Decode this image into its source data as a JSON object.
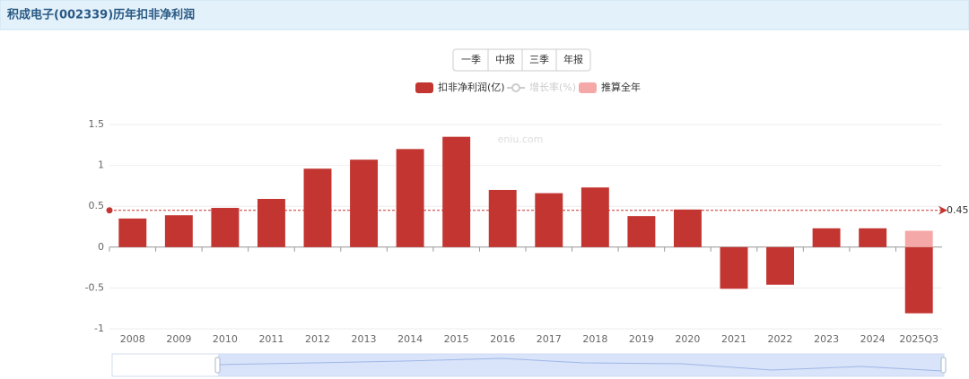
{
  "header": {
    "title": "积成电子(002339)历年扣非净利润"
  },
  "buttons": [
    "一季",
    "中报",
    "三季",
    "年报"
  ],
  "chart_data": {
    "type": "bar",
    "watermark": "eniu.com",
    "categories": [
      "2008",
      "2009",
      "2010",
      "2011",
      "2012",
      "2013",
      "2014",
      "2015",
      "2016",
      "2017",
      "2018",
      "2019",
      "2020",
      "2021",
      "2022",
      "2023",
      "2024",
      "2025Q3"
    ],
    "series": [
      {
        "name": "扣非净利润(亿)",
        "color": "#c23531",
        "values": [
          0.35,
          0.39,
          0.48,
          0.59,
          0.96,
          1.07,
          1.2,
          1.35,
          0.7,
          0.66,
          0.73,
          0.38,
          0.46,
          -0.51,
          -0.46,
          0.23,
          0.23,
          -0.81
        ]
      },
      {
        "name": "增长率(%)",
        "color": "#cccccc",
        "hidden": true,
        "values": [
          null,
          null,
          null,
          null,
          null,
          null,
          null,
          null,
          null,
          null,
          null,
          null,
          null,
          null,
          null,
          null,
          null,
          null
        ]
      },
      {
        "name": "推算全年",
        "color": "#f4a9a8",
        "values": [
          null,
          null,
          null,
          null,
          null,
          null,
          null,
          null,
          null,
          null,
          null,
          null,
          null,
          null,
          null,
          null,
          null,
          0.2
        ]
      }
    ],
    "mark_line": {
      "value": 0.45,
      "color": "#c23531"
    },
    "ylim": [
      -1,
      1.5
    ],
    "yticks": [
      1.5,
      1,
      0.5,
      0,
      -0.5,
      -1
    ],
    "grid": true
  }
}
